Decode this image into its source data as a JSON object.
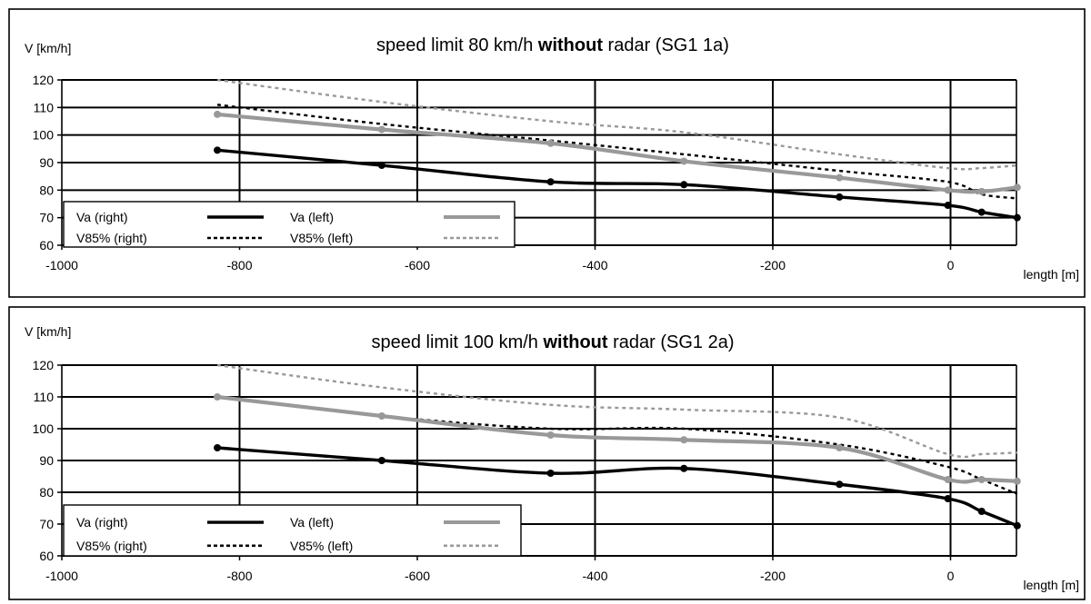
{
  "chart_data": [
    {
      "type": "line",
      "title": "speed limit 80 km/h without radar (SG1 1a)",
      "title_parts": [
        "speed limit 80 km/h ",
        "without",
        " radar (SG1 1a)"
      ],
      "ylabel": "V [km/h]",
      "xlabel": "length [m]",
      "xlim": [
        -1000,
        75
      ],
      "ylim": [
        60,
        120
      ],
      "xticks": [
        -1000,
        -800,
        -600,
        -400,
        -200,
        0
      ],
      "yticks": [
        60,
        70,
        80,
        90,
        100,
        110,
        120
      ],
      "grid": true,
      "legend_position": "bottom-left",
      "series": [
        {
          "name": "Va (right)",
          "color": "#000000",
          "style": "solid",
          "markers": true,
          "x": [
            -825,
            -640,
            -450,
            -300,
            -125,
            -3,
            35,
            75
          ],
          "y": [
            94.5,
            89,
            83,
            82,
            77.5,
            74.5,
            72,
            70
          ]
        },
        {
          "name": "V85% (right)",
          "color": "#000000",
          "style": "dotted",
          "markers": false,
          "x": [
            -825,
            -640,
            -450,
            -300,
            -125,
            -3,
            35,
            75
          ],
          "y": [
            111,
            104,
            98,
            93,
            87,
            83,
            78.5,
            77
          ]
        },
        {
          "name": "Va (left)",
          "color": "#999999",
          "style": "solid",
          "markers": true,
          "x": [
            -825,
            -640,
            -450,
            -300,
            -125,
            -3,
            35,
            75
          ],
          "y": [
            107.5,
            102,
            97,
            90.5,
            84.5,
            80,
            79.5,
            81
          ]
        },
        {
          "name": "V85% (left)",
          "color": "#999999",
          "style": "dotted",
          "markers": false,
          "x": [
            -825,
            -640,
            -450,
            -300,
            -125,
            -3,
            35,
            75
          ],
          "y": [
            120,
            112,
            105,
            101,
            93,
            88,
            88,
            89
          ]
        }
      ]
    },
    {
      "type": "line",
      "title": "speed limit 100 km/h without radar (SG1 2a)",
      "title_parts": [
        "speed limit 100 km/h ",
        "without",
        " radar (SG1 2a)"
      ],
      "ylabel": "V [km/h]",
      "xlabel": "length [m]",
      "xlim": [
        -1000,
        75
      ],
      "ylim": [
        60,
        120
      ],
      "xticks": [
        -1000,
        -800,
        -600,
        -400,
        -200,
        0
      ],
      "yticks": [
        60,
        70,
        80,
        90,
        100,
        110,
        120
      ],
      "grid": true,
      "legend_position": "bottom-left",
      "series": [
        {
          "name": "Va (right)",
          "color": "#000000",
          "style": "solid",
          "markers": true,
          "x": [
            -825,
            -640,
            -450,
            -300,
            -125,
            -3,
            35,
            75
          ],
          "y": [
            94,
            90,
            86,
            87.5,
            82.5,
            78,
            74,
            69.5
          ]
        },
        {
          "name": "V85% (right)",
          "color": "#000000",
          "style": "dotted",
          "markers": false,
          "x": [
            -825,
            -640,
            -450,
            -300,
            -125,
            -3,
            35,
            75
          ],
          "y": [
            110,
            104,
            100,
            100,
            95,
            88,
            84,
            79.5
          ]
        },
        {
          "name": "Va (left)",
          "color": "#999999",
          "style": "solid",
          "markers": true,
          "x": [
            -825,
            -640,
            -450,
            -300,
            -125,
            -3,
            35,
            75
          ],
          "y": [
            110,
            104,
            98,
            96.5,
            94,
            84,
            84,
            83.5
          ]
        },
        {
          "name": "V85% (left)",
          "color": "#999999",
          "style": "dotted",
          "markers": false,
          "x": [
            -825,
            -640,
            -450,
            -300,
            -125,
            -3,
            35,
            75
          ],
          "y": [
            120,
            113,
            107.5,
            106,
            103.5,
            92,
            92,
            92.5
          ]
        }
      ]
    }
  ]
}
